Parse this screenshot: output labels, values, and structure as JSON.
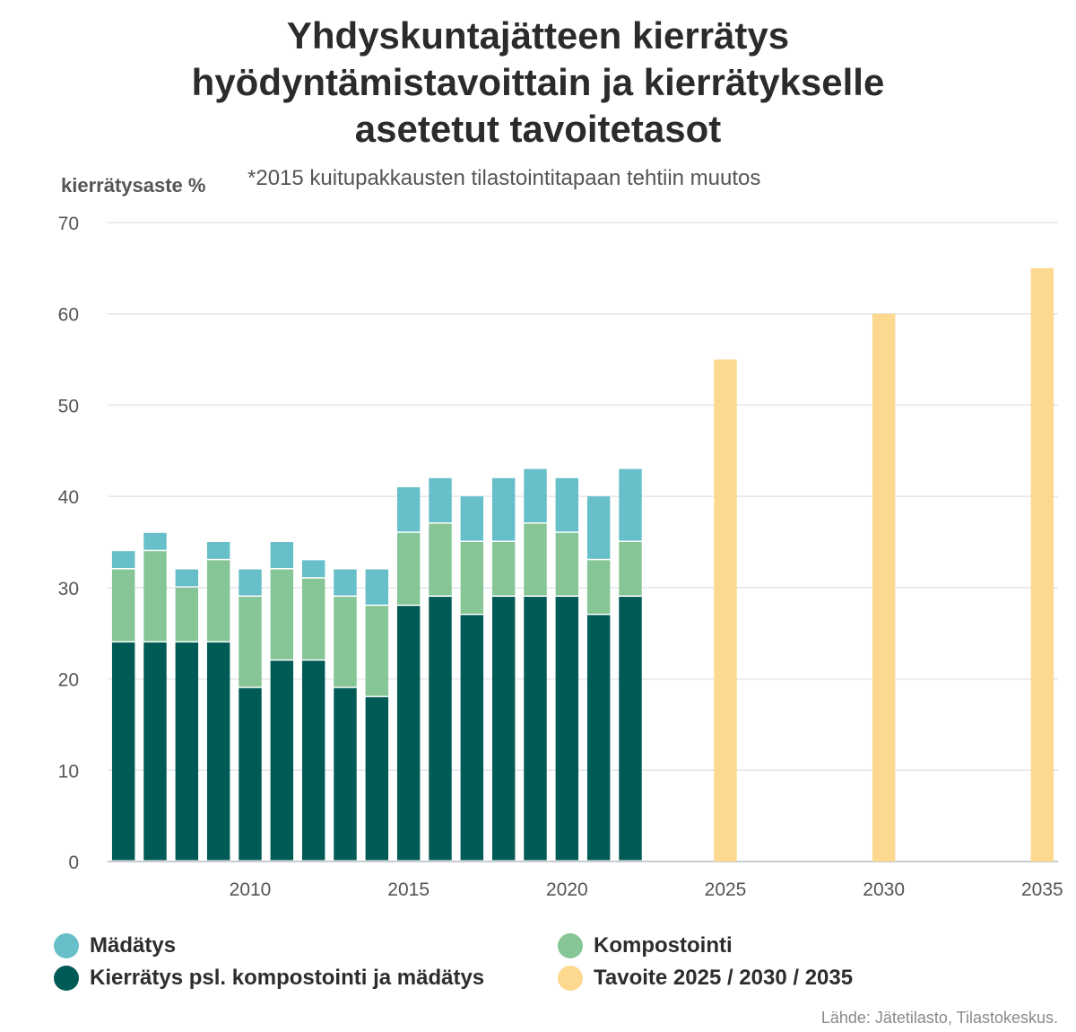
{
  "title_lines": [
    "Yhdyskuntajätteen kierrätys",
    "hyödyntämistavoittain ja kierrätykselle",
    "asetetut tavoitetasot"
  ],
  "ylabel": "kierrätysaste %",
  "note": "*2015 kuitupakkausten tilastointitapaan tehtiin muutos",
  "source": "Lähde: Jätetilasto, Tilastokeskus.",
  "legend": [
    {
      "label": "Mädätys",
      "color": "#66bfc9"
    },
    {
      "label": "Kompostointi",
      "color": "#86c596"
    },
    {
      "label": "Kierrätys psl. kompostointi ja mädätys",
      "color": "#005a55"
    },
    {
      "label": "Tavoite 2025 / 2030 / 2035",
      "color": "#fdd88f"
    }
  ],
  "chart_data": {
    "type": "bar",
    "stacked": true,
    "ylim": [
      0,
      70
    ],
    "yticks": [
      0,
      10,
      20,
      30,
      40,
      50,
      60,
      70
    ],
    "xlim": [
      2005.5,
      2035.5
    ],
    "xticks": [
      2010,
      2015,
      2020,
      2025,
      2030,
      2035
    ],
    "grid": true,
    "legend_position": "bottom",
    "x": [
      2006,
      2007,
      2008,
      2009,
      2010,
      2011,
      2012,
      2013,
      2014,
      2015,
      2016,
      2017,
      2018,
      2019,
      2020,
      2021,
      2022
    ],
    "series": [
      {
        "name": "Kierrätys psl. kompostointi ja mädätys",
        "color": "#005a55",
        "values": [
          24,
          24,
          24,
          24,
          19,
          22,
          22,
          19,
          18,
          28,
          29,
          27,
          29,
          29,
          29,
          27,
          29
        ]
      },
      {
        "name": "Kompostointi",
        "color": "#86c596",
        "values": [
          8,
          10,
          6,
          9,
          10,
          10,
          9,
          10,
          10,
          8,
          8,
          8,
          6,
          8,
          7,
          6,
          6
        ]
      },
      {
        "name": "Mädätys",
        "color": "#66bfc9",
        "values": [
          2,
          2,
          2,
          2,
          3,
          3,
          2,
          3,
          4,
          5,
          5,
          5,
          7,
          6,
          6,
          7,
          8
        ]
      }
    ],
    "targets": {
      "name": "Tavoite 2025 / 2030 / 2035",
      "color": "#fdd88f",
      "x": [
        2025,
        2030,
        2035
      ],
      "values": [
        55,
        60,
        65
      ]
    }
  }
}
